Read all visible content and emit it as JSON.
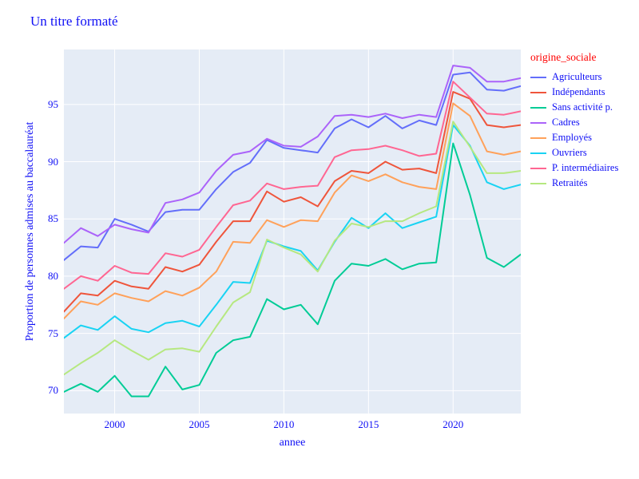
{
  "title": "Un titre formaté",
  "colors": {
    "text": "#0f0ff5",
    "legend_title_text": "#ff0000",
    "plot_background": "#e5ecf6",
    "gridline": "#ffffff"
  },
  "chart_data": {
    "type": "line",
    "title": "Un titre formaté",
    "xlabel": "annee",
    "ylabel": "Proportion de personnes admises au baccalauréat",
    "legend_title": "origine_sociale",
    "legend_position": "right",
    "grid": true,
    "xlim": [
      1997,
      2024
    ],
    "ylim": [
      68.0,
      99.8
    ],
    "x_ticks": [
      2000,
      2005,
      2010,
      2015,
      2020
    ],
    "y_ticks": [
      70,
      75,
      80,
      85,
      90,
      95
    ],
    "x": [
      1997,
      1998,
      1999,
      2000,
      2001,
      2002,
      2003,
      2004,
      2005,
      2006,
      2007,
      2008,
      2009,
      2010,
      2011,
      2012,
      2013,
      2014,
      2015,
      2016,
      2017,
      2018,
      2019,
      2020,
      2021,
      2022,
      2023,
      2024
    ],
    "series": [
      {
        "name": "Agriculteurs",
        "color": "#636efa",
        "values": [
          81.4,
          82.6,
          82.5,
          85.0,
          84.5,
          83.9,
          85.6,
          85.8,
          85.8,
          87.6,
          89.1,
          89.9,
          91.9,
          91.2,
          91.0,
          90.8,
          92.9,
          93.7,
          93.0,
          94.0,
          92.9,
          93.6,
          93.2,
          97.6,
          97.8,
          96.3,
          96.2,
          96.6
        ]
      },
      {
        "name": "Indépendants",
        "color": "#ef553b",
        "values": [
          76.9,
          78.5,
          78.3,
          79.6,
          79.1,
          78.9,
          80.8,
          80.4,
          81.0,
          83.0,
          84.8,
          84.8,
          87.4,
          86.5,
          86.9,
          86.1,
          88.3,
          89.2,
          89.0,
          90.0,
          89.3,
          89.4,
          89.0,
          96.1,
          95.5,
          93.2,
          93.0,
          93.2
        ]
      },
      {
        "name": "Sans activité p.",
        "color": "#00cc96",
        "values": [
          69.9,
          70.6,
          69.9,
          71.3,
          69.5,
          69.5,
          72.1,
          70.1,
          70.5,
          73.3,
          74.4,
          74.7,
          78.0,
          77.1,
          77.5,
          75.8,
          79.6,
          81.1,
          80.9,
          81.5,
          80.6,
          81.1,
          81.2,
          91.6,
          87.1,
          81.6,
          80.8,
          81.9
        ]
      },
      {
        "name": "Cadres",
        "color": "#ab63fa",
        "values": [
          82.9,
          84.2,
          83.5,
          84.5,
          84.1,
          83.8,
          86.4,
          86.7,
          87.3,
          89.2,
          90.6,
          90.9,
          92.0,
          91.4,
          91.3,
          92.2,
          94.0,
          94.1,
          93.9,
          94.2,
          93.8,
          94.1,
          93.9,
          98.4,
          98.2,
          97.0,
          97.0,
          97.3
        ]
      },
      {
        "name": "Employés",
        "color": "#ffa15a",
        "values": [
          76.3,
          77.8,
          77.5,
          78.5,
          78.1,
          77.8,
          78.7,
          78.3,
          79.0,
          80.4,
          83.0,
          82.9,
          84.9,
          84.3,
          84.9,
          84.8,
          87.3,
          88.8,
          88.3,
          88.9,
          88.2,
          87.8,
          87.6,
          95.1,
          94.0,
          90.9,
          90.6,
          90.9
        ]
      },
      {
        "name": "Ouvriers",
        "color": "#19d3f3",
        "values": [
          74.6,
          75.7,
          75.3,
          76.5,
          75.4,
          75.1,
          75.9,
          76.1,
          75.6,
          77.5,
          79.5,
          79.4,
          83.1,
          82.6,
          82.2,
          80.5,
          83.0,
          85.1,
          84.2,
          85.5,
          84.2,
          84.7,
          85.2,
          93.2,
          91.4,
          88.2,
          87.6,
          88.0
        ]
      },
      {
        "name": "P. intermédiaires",
        "color": "#ff6692",
        "values": [
          78.9,
          80.0,
          79.6,
          80.9,
          80.3,
          80.2,
          82.0,
          81.7,
          82.3,
          84.3,
          86.2,
          86.6,
          88.1,
          87.6,
          87.8,
          87.9,
          90.4,
          91.0,
          91.1,
          91.4,
          91.0,
          90.5,
          90.7,
          97.0,
          95.6,
          94.2,
          94.1,
          94.4
        ]
      },
      {
        "name": "Retraités",
        "color": "#b6e880",
        "values": [
          71.4,
          72.4,
          73.3,
          74.4,
          73.5,
          72.7,
          73.6,
          73.7,
          73.4,
          75.6,
          77.7,
          78.6,
          83.2,
          82.5,
          81.9,
          80.4,
          83.1,
          84.6,
          84.3,
          84.8,
          84.8,
          85.5,
          86.1,
          93.5,
          91.3,
          89.0,
          89.0,
          89.2
        ]
      }
    ]
  }
}
